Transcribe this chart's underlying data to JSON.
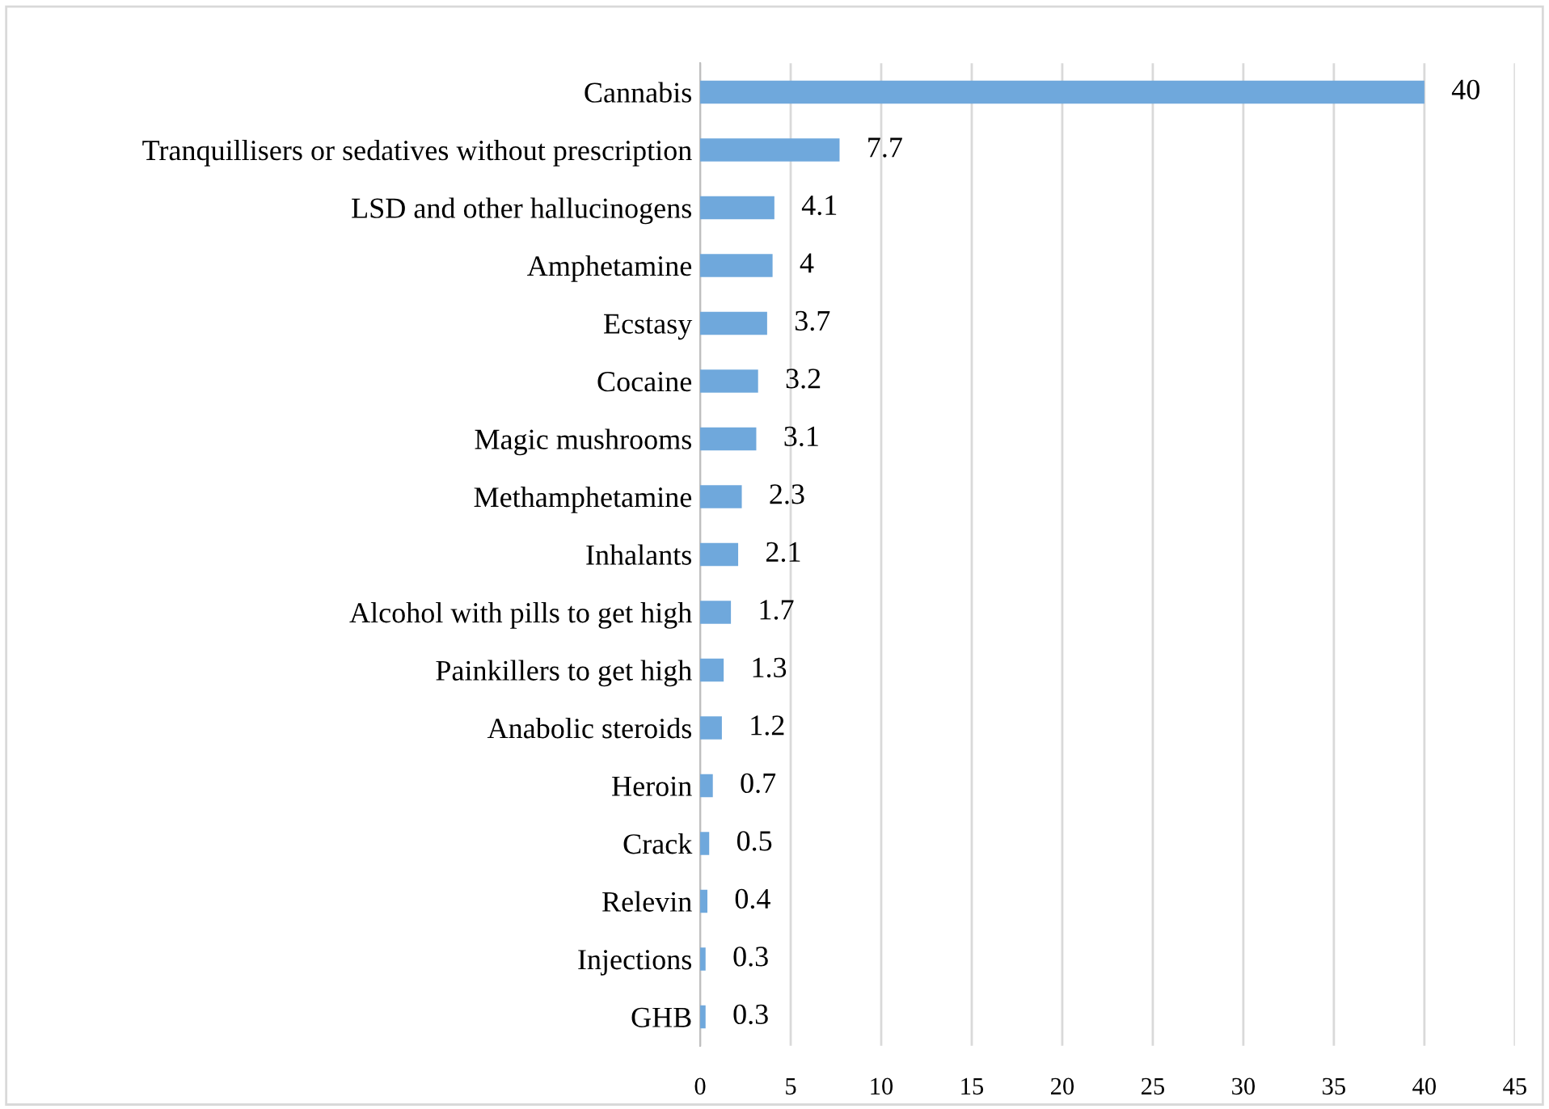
{
  "chart_data": {
    "type": "bar",
    "orientation": "horizontal",
    "categories": [
      "Cannabis",
      "Tranquillisers or sedatives without prescription",
      "LSD and other hallucinogens",
      "Amphetamine",
      "Ecstasy",
      "Cocaine",
      "Magic mushrooms",
      "Methamphetamine",
      "Inhalants",
      "Alcohol with pills to get high",
      "Painkillers to get high",
      "Anabolic steroids",
      "Heroin",
      "Crack",
      "Relevin",
      "Injections",
      "GHB"
    ],
    "values": [
      40,
      7.7,
      4.1,
      4,
      3.7,
      3.2,
      3.1,
      2.3,
      2.1,
      1.7,
      1.3,
      1.2,
      0.7,
      0.5,
      0.4,
      0.3,
      0.3
    ],
    "color": "#6fa8dc",
    "xlim": [
      0,
      45
    ],
    "xticks": [
      0,
      5,
      10,
      15,
      20,
      25,
      30,
      35,
      40,
      45
    ],
    "grid": "x",
    "data_labels": true
  }
}
